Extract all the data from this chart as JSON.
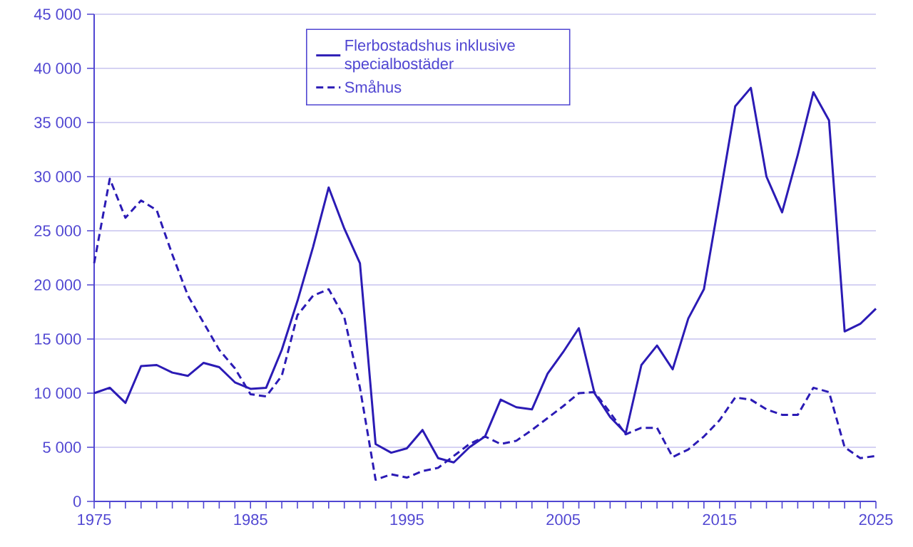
{
  "chart_data": {
    "type": "line",
    "x": [
      1975,
      1976,
      1977,
      1978,
      1979,
      1980,
      1981,
      1982,
      1983,
      1984,
      1985,
      1986,
      1987,
      1988,
      1989,
      1990,
      1991,
      1992,
      1993,
      1994,
      1995,
      1996,
      1997,
      1998,
      1999,
      2000,
      2001,
      2002,
      2003,
      2004,
      2005,
      2006,
      2007,
      2008,
      2009,
      2010,
      2011,
      2012,
      2013,
      2014,
      2015,
      2016,
      2017,
      2018,
      2019,
      2020,
      2021,
      2022,
      2023,
      2024,
      2025
    ],
    "series": [
      {
        "name": "Flerbostadshus inklusive specialbostäder",
        "color": "#2b1bb5",
        "line_style": "solid",
        "values": [
          10000,
          10500,
          9100,
          12500,
          12600,
          11900,
          11600,
          12800,
          12400,
          11000,
          10400,
          10500,
          14000,
          18500,
          23500,
          29000,
          25200,
          22000,
          5300,
          4500,
          4900,
          6600,
          4000,
          3600,
          5000,
          6000,
          9400,
          8700,
          8500,
          11800,
          13800,
          16000,
          10000,
          7800,
          6300,
          12600,
          14400,
          12200,
          16900,
          19600,
          28000,
          36500,
          38200,
          30000,
          26700,
          32000,
          37800,
          35200,
          15700,
          16400,
          17800
        ]
      },
      {
        "name": "Småhus",
        "color": "#2b1bb5",
        "line_style": "dashed",
        "values": [
          22000,
          29800,
          26200,
          27800,
          26900,
          22800,
          19000,
          16500,
          14000,
          12300,
          9900,
          9700,
          11600,
          17200,
          19000,
          19600,
          17000,
          10500,
          2000,
          2500,
          2200,
          2800,
          3100,
          4200,
          5300,
          6000,
          5300,
          5600,
          6600,
          7700,
          8800,
          10000,
          10100,
          8200,
          6200,
          6800,
          6800,
          4100,
          4800,
          6000,
          7500,
          9600,
          9400,
          8500,
          8000,
          8000,
          10500,
          10100,
          5000,
          4000,
          4200
        ]
      }
    ],
    "xlim": [
      1975,
      2025
    ],
    "xticks": [
      1975,
      {
        "value": 1976,
        "label": null
      },
      {
        "value": 1977,
        "label": null
      },
      {
        "value": 1978,
        "label": null
      },
      {
        "value": 1979,
        "label": null
      },
      {
        "value": 1980,
        "label": null
      },
      {
        "value": 1981,
        "label": null
      },
      {
        "value": 1982,
        "label": null
      },
      {
        "value": 1983,
        "label": null
      },
      {
        "value": 1984,
        "label": null
      },
      1985,
      {
        "value": 1986,
        "label": null
      },
      {
        "value": 1987,
        "label": null
      },
      {
        "value": 1988,
        "label": null
      },
      {
        "value": 1989,
        "label": null
      },
      {
        "value": 1990,
        "label": null
      },
      {
        "value": 1991,
        "label": null
      },
      {
        "value": 1992,
        "label": null
      },
      {
        "value": 1993,
        "label": null
      },
      {
        "value": 1994,
        "label": null
      },
      1995,
      {
        "value": 1996,
        "label": null
      },
      {
        "value": 1997,
        "label": null
      },
      {
        "value": 1998,
        "label": null
      },
      {
        "value": 1999,
        "label": null
      },
      {
        "value": 2000,
        "label": null
      },
      {
        "value": 2001,
        "label": null
      },
      {
        "value": 2002,
        "label": null
      },
      {
        "value": 2003,
        "label": null
      },
      {
        "value": 2004,
        "label": null
      },
      2005,
      {
        "value": 2006,
        "label": null
      },
      {
        "value": 2007,
        "label": null
      },
      {
        "value": 2008,
        "label": null
      },
      {
        "value": 2009,
        "label": null
      },
      {
        "value": 2010,
        "label": null
      },
      {
        "value": 2011,
        "label": null
      },
      {
        "value": 2012,
        "label": null
      },
      {
        "value": 2013,
        "label": null
      },
      {
        "value": 2014,
        "label": null
      },
      2015,
      {
        "value": 2016,
        "label": null
      },
      {
        "value": 2017,
        "label": null
      },
      {
        "value": 2018,
        "label": null
      },
      {
        "value": 2019,
        "label": null
      },
      {
        "value": 2020,
        "label": null
      },
      {
        "value": 2021,
        "label": null
      },
      {
        "value": 2022,
        "label": null
      },
      {
        "value": 2023,
        "label": null
      },
      {
        "value": 2024,
        "label": null
      },
      2025
    ],
    "ylim": [
      0,
      45000
    ],
    "yticks": [
      0,
      {
        "value": 5000,
        "label": "5 000"
      },
      {
        "value": 10000,
        "label": "10 000"
      },
      {
        "value": 15000,
        "label": "15 000"
      },
      {
        "value": 20000,
        "label": "20 000"
      },
      {
        "value": 25000,
        "label": "25 000"
      },
      {
        "value": 30000,
        "label": "30 000"
      },
      {
        "value": 35000,
        "label": "35 000"
      },
      {
        "value": 40000,
        "label": "40 000"
      },
      {
        "value": 45000,
        "label": "45 000"
      }
    ],
    "grid": "y",
    "legend": "top",
    "marker": "none"
  }
}
